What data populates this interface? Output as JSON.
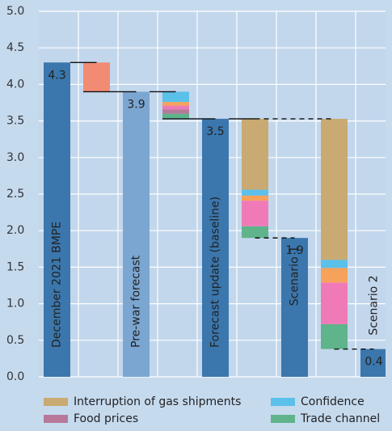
{
  "chart_data": {
    "type": "waterfall",
    "categories": [
      "December 2021 BMPE",
      null,
      "Pre-war forecast",
      null,
      "Forecast update (baseline)",
      null,
      "Scenario 1",
      null,
      "Scenario 2"
    ],
    "values": [
      4.3,
      null,
      3.9,
      null,
      3.53,
      null,
      1.9,
      null,
      0.38
    ],
    "value_labels": [
      "4.3",
      null,
      "3.9",
      null,
      "3.5",
      null,
      "1.9",
      null,
      "0.4"
    ],
    "colors": [
      "#3b77ad",
      null,
      "#7ba6d1",
      null,
      "#3b77ad",
      null,
      "#3b77ad",
      null,
      "#3b77ad"
    ],
    "series": [
      {
        "color": "#f28b73",
        "values": [
          null,
          0.4,
          null,
          null,
          null,
          null,
          null,
          null,
          null
        ]
      },
      {
        "name": "Interruption of gas shipments",
        "color": "#c9aa72",
        "values": [
          null,
          null,
          null,
          null,
          null,
          0.97,
          null,
          1.93,
          null
        ]
      },
      {
        "name": "Confidence",
        "color": "#5bc0ea",
        "values": [
          null,
          null,
          null,
          0.14,
          null,
          0.08,
          null,
          0.11,
          null
        ]
      },
      {
        "color": "#f7a25a",
        "values": [
          null,
          null,
          null,
          0.05,
          null,
          0.07,
          null,
          0.2,
          null
        ]
      },
      {
        "color": "#f07ab7",
        "values": [
          null,
          null,
          null,
          0.05,
          null,
          0.35,
          null,
          0.57,
          null
        ]
      },
      {
        "name": "Food prices",
        "color": "#b8789a",
        "values": [
          null,
          null,
          null,
          0.06,
          null,
          null,
          null,
          null,
          null
        ]
      },
      {
        "name": "Trade channel",
        "color": "#5fb48b",
        "values": [
          null,
          null,
          null,
          0.07,
          null,
          0.16,
          null,
          0.34,
          null
        ]
      }
    ],
    "ylim": [
      0,
      5
    ],
    "yticks": [
      {
        "value": 0,
        "label": "0.0"
      },
      0.5,
      {
        "value": 1,
        "label": "1.0"
      },
      1.5,
      {
        "value": 2,
        "label": "2.0"
      },
      2.5,
      {
        "value": 3,
        "label": "3.0"
      },
      3.5,
      {
        "value": 4,
        "label": "4.0"
      },
      4.5,
      {
        "value": 5,
        "label": "5.0"
      }
    ],
    "grid": true
  }
}
